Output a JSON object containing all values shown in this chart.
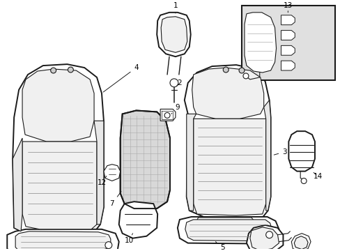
{
  "background_color": "#ffffff",
  "line_color": "#1a1a1a",
  "label_color": "#000000",
  "box13_bg": "#e0e0e0",
  "lw_outer": 1.4,
  "lw_inner": 0.8,
  "lw_tex": 0.5,
  "fontsize_label": 7.5
}
